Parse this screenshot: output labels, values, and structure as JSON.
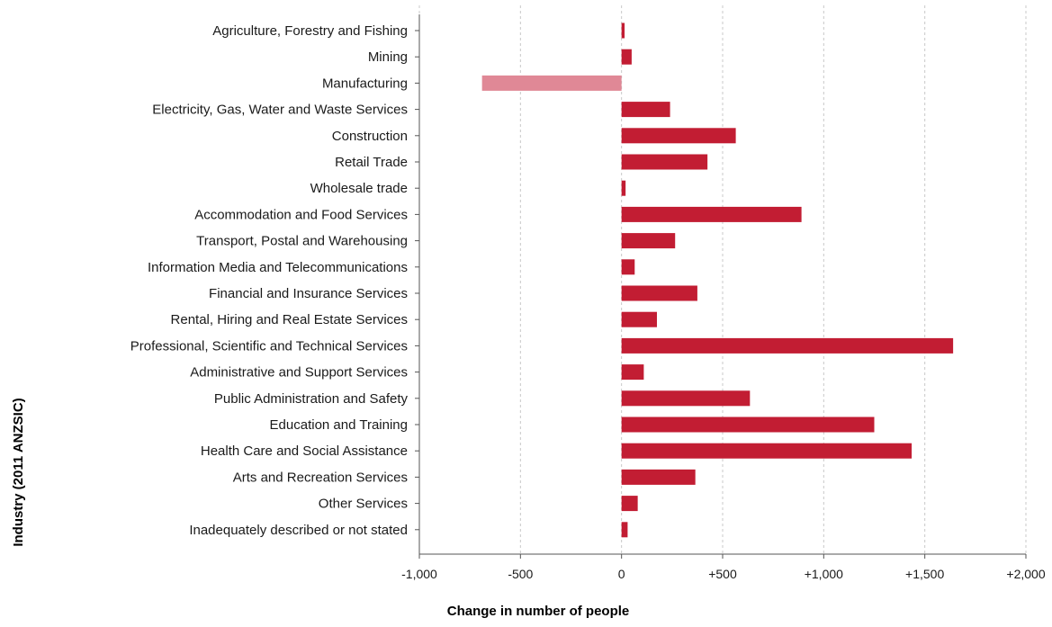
{
  "chart_data": {
    "type": "bar",
    "orientation": "horizontal",
    "xlabel": "Change in number of people",
    "ylabel": "Industry (2011 ANZSIC)",
    "xlim": [
      -1000,
      2000
    ],
    "xticks": [
      -1000,
      -500,
      0,
      500,
      1000,
      1500,
      2000
    ],
    "xtick_labels": [
      "-1,000",
      "-500",
      "0",
      "+500",
      "+1,000",
      "+1,500",
      "+2,000"
    ],
    "grid": "vertical-dashed",
    "colors": {
      "positive": "#c21d33",
      "negative": "#e08896"
    },
    "categories": [
      "Agriculture, Forestry and Fishing",
      "Mining",
      "Manufacturing",
      "Electricity, Gas, Water and Waste Services",
      "Construction",
      "Retail Trade",
      "Wholesale trade",
      "Accommodation and Food Services",
      "Transport, Postal and Warehousing",
      "Information Media and Telecommunications",
      "Financial and Insurance Services",
      "Rental, Hiring and Real Estate Services",
      "Professional, Scientific and Technical Services",
      "Administrative and Support Services",
      "Public Administration and Safety",
      "Education and Training",
      "Health Care and Social Assistance",
      "Arts and Recreation Services",
      "Other Services",
      "Inadequately described or not stated"
    ],
    "values": [
      15,
      50,
      -690,
      240,
      565,
      425,
      20,
      890,
      265,
      65,
      375,
      175,
      1640,
      110,
      635,
      1250,
      1435,
      365,
      80,
      30
    ]
  }
}
